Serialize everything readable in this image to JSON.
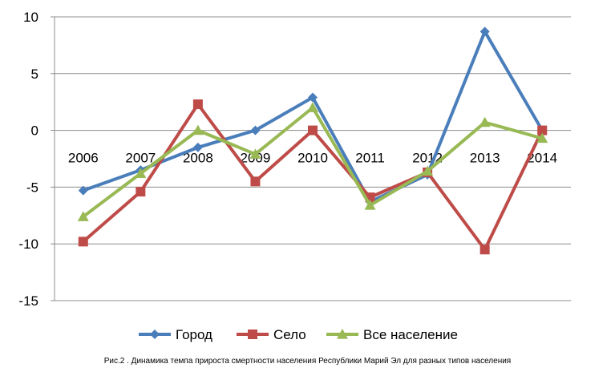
{
  "chart_data": {
    "type": "line",
    "categories": [
      "2006",
      "2007",
      "2008",
      "2009",
      "2010",
      "2011",
      "2012",
      "2013",
      "2014"
    ],
    "series": [
      {
        "name": "Город",
        "color": "#4a7ebb",
        "marker": "diamond",
        "values": [
          -5.3,
          -3.5,
          -1.5,
          0,
          2.9,
          -6.3,
          -3.9,
          8.7,
          0
        ]
      },
      {
        "name": "Село",
        "color": "#be4b48",
        "marker": "square",
        "values": [
          -9.8,
          -5.4,
          2.3,
          -4.5,
          0,
          -5.9,
          -3.7,
          -10.5,
          0
        ]
      },
      {
        "name": "Все население",
        "color": "#98b954",
        "marker": "triangle",
        "values": [
          -7.6,
          -3.8,
          0,
          -2.1,
          2.0,
          -6.6,
          -3.6,
          0.7,
          -0.7
        ]
      }
    ],
    "ylim": [
      -15,
      10
    ],
    "yticks": [
      -15,
      -10,
      -5,
      0,
      5,
      10
    ],
    "grid": "horizontal",
    "legend_position": "bottom",
    "title": "",
    "xlabel": "",
    "ylabel": ""
  },
  "caption": "Рис.2 . Динамика темпа прироста смертности населения Республики Марий Эл для разных типов населения"
}
